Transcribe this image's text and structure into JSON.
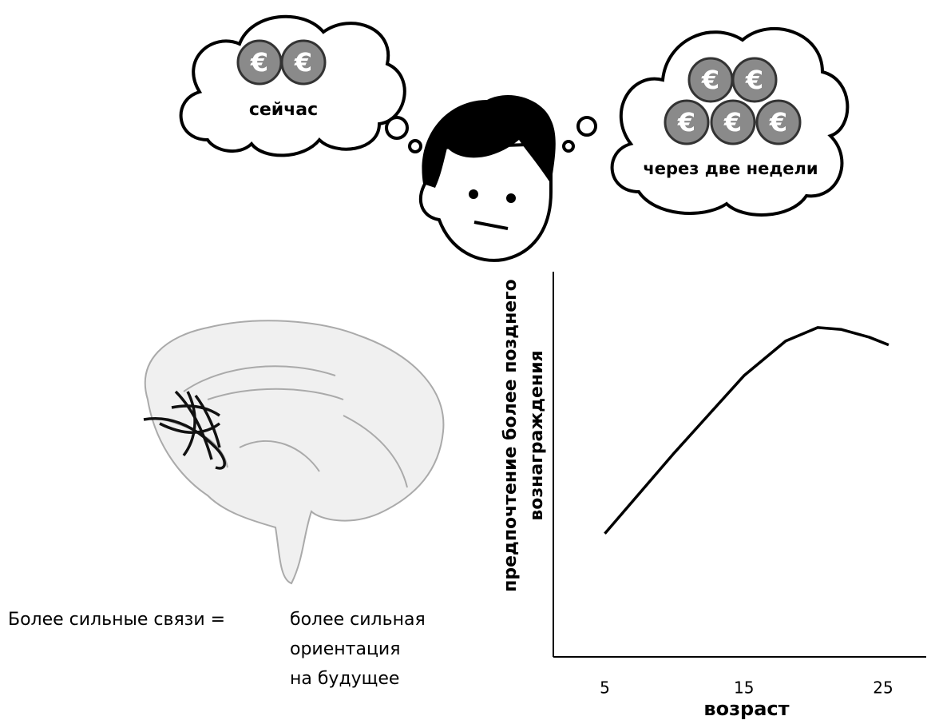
{
  "illustration": {
    "thought_now": "сейчас",
    "thought_later": "через две недели",
    "coin_symbol": "€"
  },
  "caption": {
    "left": "Более сильные связи =",
    "right_lines": [
      "более сильная",
      "ориентация",
      "на будущее"
    ]
  },
  "chart_data": {
    "type": "line",
    "ylabel_lines": [
      "предпочтение более позднего",
      "вознаграждения"
    ],
    "xlabel": "возраст",
    "x": [
      5,
      10,
      15,
      18,
      20.3,
      22,
      24,
      25.4
    ],
    "series": [
      {
        "name": null,
        "color": "#000000",
        "values": [
          32,
          53,
          73,
          82,
          85.5,
          85,
          83,
          81
        ]
      }
    ],
    "xlim": [
      1.3,
      28.1
    ],
    "xticks": [
      5,
      15,
      25
    ],
    "ylim": [
      0,
      100
    ]
  }
}
